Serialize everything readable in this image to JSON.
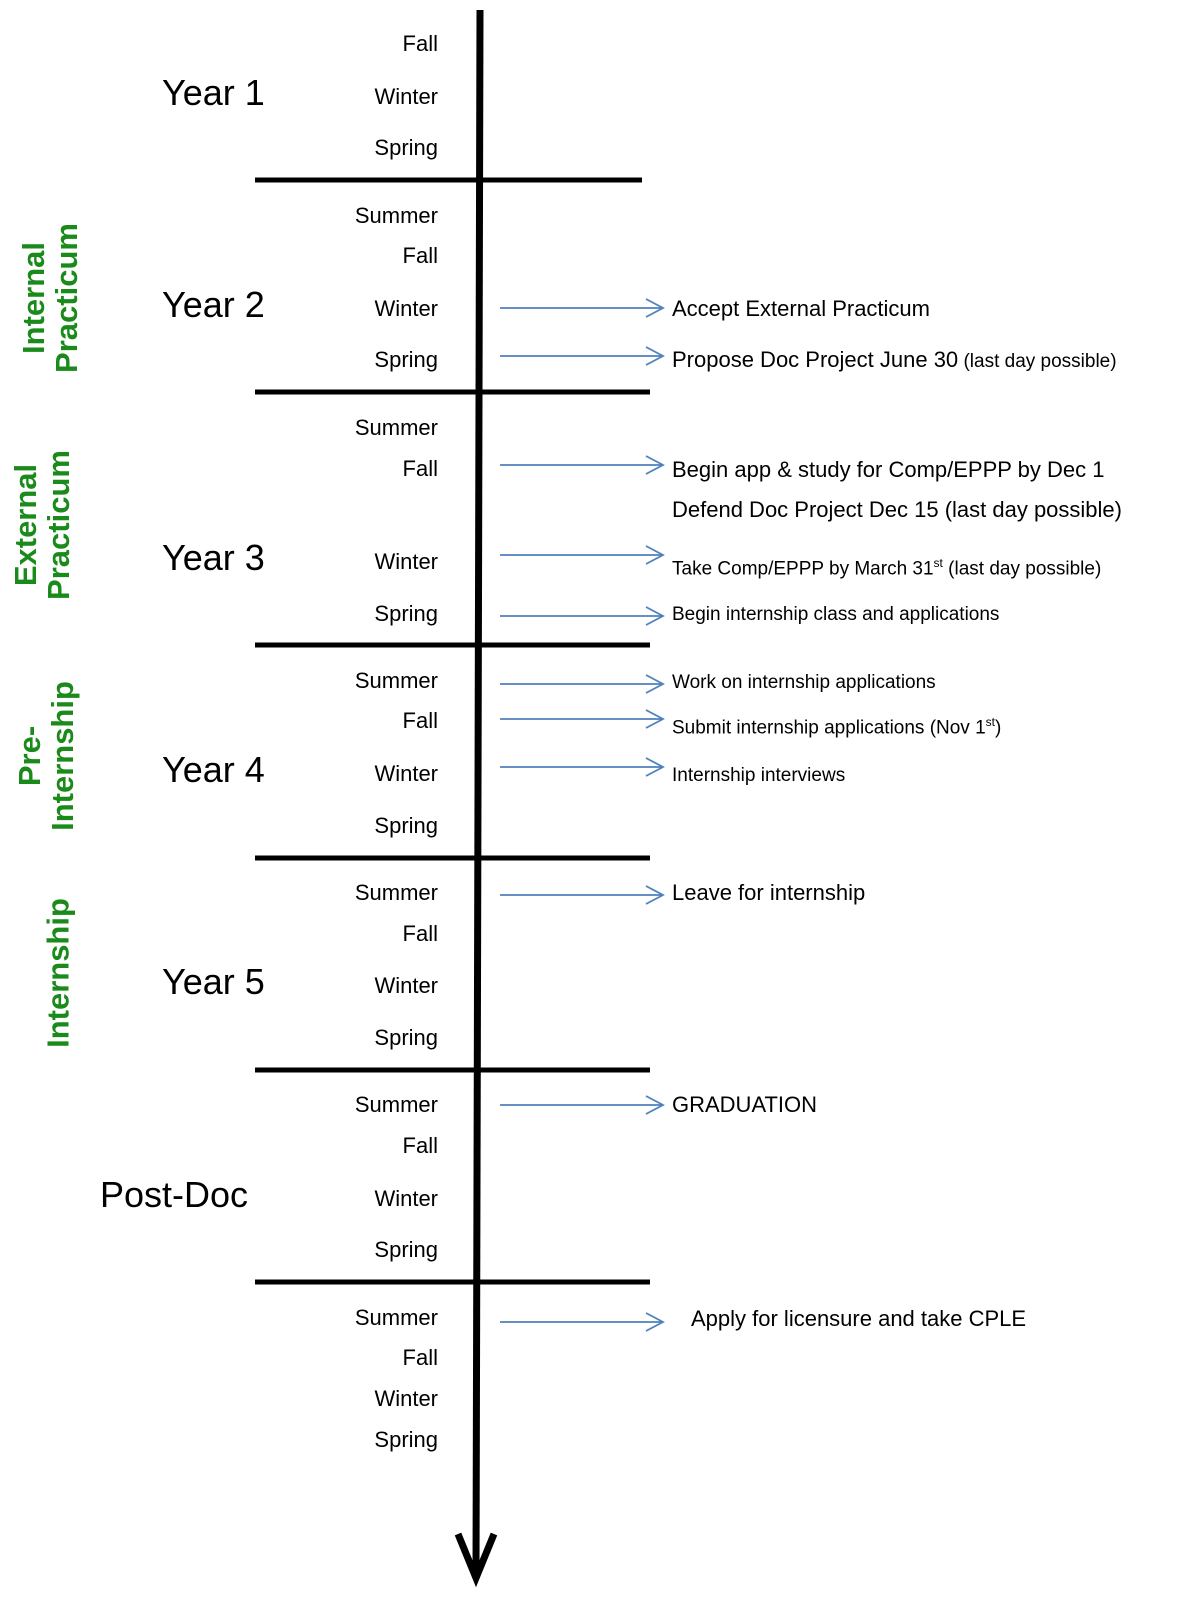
{
  "colors": {
    "timeline": "#000000",
    "arrow": "#4f81bd",
    "phase_label": "#1a8a1a",
    "text": "#000000"
  },
  "years": [
    {
      "label": "Year 1"
    },
    {
      "label": "Year 2"
    },
    {
      "label": "Year 3"
    },
    {
      "label": "Year 4"
    },
    {
      "label": "Year 5"
    },
    {
      "label": "Post-Doc"
    }
  ],
  "seasons": [
    "Fall",
    "Winter",
    "Spring",
    "Summer",
    "Fall",
    "Winter",
    "Spring",
    "Summer",
    "Fall",
    "Winter",
    "Spring",
    "Summer",
    "Fall",
    "Winter",
    "Spring",
    "Summer",
    "Fall",
    "Winter",
    "Spring",
    "Summer",
    "Fall",
    "Winter",
    "Spring",
    "Summer",
    "Fall",
    "Winter",
    "Spring"
  ],
  "phases": [
    {
      "line1": "Internal",
      "line2": "Practicum"
    },
    {
      "line1": "External",
      "line2": "Practicum"
    },
    {
      "line1": "Pre-",
      "line2": "Internship"
    },
    {
      "line1": "Internship",
      "line2": ""
    }
  ],
  "events": [
    {
      "text": "Accept External Practicum",
      "note": ""
    },
    {
      "text": "Propose Doc Project June 30",
      "note": " (last day possible)"
    },
    {
      "text": "Begin app & study for Comp/EPPP by Dec 1",
      "note": ""
    },
    {
      "text": "Defend Doc Project Dec 15 (last day possible)",
      "note": ""
    },
    {
      "text": "Take Comp/EPPP by March 31",
      "sup": "st",
      "note": " (last day possible)"
    },
    {
      "text": " Begin internship class and applications",
      "note": ""
    },
    {
      "text": "Work on internship applications",
      "note": ""
    },
    {
      "text": "Submit internship applications (Nov 1",
      "sup": "st",
      "note": ")"
    },
    {
      "text": "Internship interviews",
      "note": ""
    },
    {
      "text": "Leave for internship",
      "note": ""
    },
    {
      "text": "GRADUATION",
      "note": ""
    },
    {
      "text": "Apply for licensure and take CPLE",
      "note": ""
    }
  ]
}
